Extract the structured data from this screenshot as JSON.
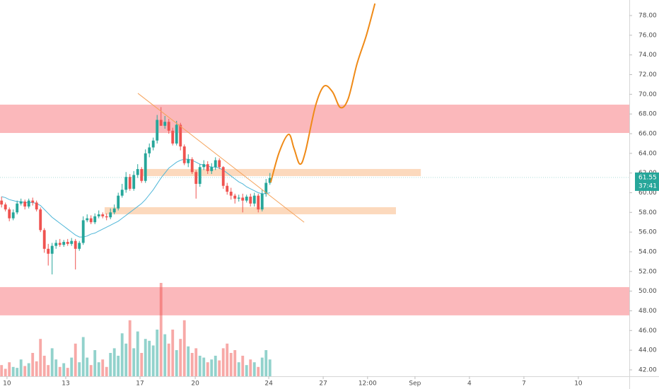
{
  "chart_data": {
    "type": "candlestick",
    "x": [
      0,
      1,
      2,
      3,
      4,
      5,
      6,
      7,
      8,
      9,
      10,
      11,
      12,
      13,
      14,
      15,
      16,
      17,
      18,
      19,
      20,
      21,
      22,
      23,
      24,
      25,
      26,
      27,
      28,
      29,
      30,
      31,
      32,
      33,
      34,
      35,
      36,
      37,
      38,
      39,
      40,
      41,
      42,
      43,
      44,
      45,
      46,
      47,
      48,
      49,
      50,
      51,
      52,
      53,
      54,
      55,
      56,
      57,
      58,
      59,
      60,
      61,
      62,
      63,
      64,
      65,
      66,
      67,
      68,
      69
    ],
    "open": [
      59.2,
      58.8,
      58.3,
      57.4,
      58.0,
      58.9,
      59.1,
      58.6,
      59.2,
      59.0,
      58.3,
      56.2,
      54.3,
      53.8,
      54.6,
      54.9,
      54.7,
      55.0,
      54.8,
      55.1,
      54.3,
      54.9,
      57.2,
      57.4,
      57.0,
      57.6,
      57.8,
      57.6,
      57.5,
      58.0,
      58.4,
      59.7,
      60.3,
      61.6,
      60.4,
      61.8,
      62.4,
      61.2,
      64.0,
      64.6,
      65.3,
      67.4,
      66.8,
      67.2,
      66.3,
      65.0,
      66.9,
      64.7,
      63.0,
      63.4,
      62.1,
      60.9,
      62.6,
      62.9,
      62.2,
      62.6,
      63.3,
      62.6,
      60.7,
      60.1,
      59.7,
      59.4,
      59.5,
      59.2,
      59.6,
      58.9,
      59.7,
      58.3,
      59.9,
      61.0
    ],
    "high": [
      59.6,
      59.0,
      58.5,
      58.3,
      59.2,
      59.4,
      59.3,
      59.4,
      59.5,
      59.2,
      58.5,
      56.4,
      54.8,
      54.9,
      55.2,
      55.3,
      55.2,
      55.3,
      55.4,
      55.3,
      55.1,
      57.6,
      57.8,
      57.7,
      57.9,
      58.2,
      58.0,
      57.9,
      58.4,
      58.8,
      60.0,
      60.9,
      62.1,
      61.9,
      62.2,
      62.9,
      62.6,
      64.4,
      65.0,
      65.6,
      67.9,
      68.7,
      67.8,
      67.5,
      66.6,
      67.3,
      67.1,
      64.9,
      63.9,
      63.6,
      62.3,
      62.9,
      63.3,
      63.2,
      63.0,
      63.6,
      63.5,
      62.7,
      61.0,
      60.5,
      59.9,
      59.8,
      59.9,
      59.8,
      59.9,
      60.0,
      59.9,
      60.3,
      61.4,
      62.0
    ],
    "low": [
      58.5,
      58.1,
      57.1,
      57.2,
      57.8,
      58.7,
      58.3,
      58.4,
      58.7,
      58.1,
      56.0,
      53.9,
      52.6,
      51.7,
      54.3,
      54.5,
      54.5,
      54.6,
      54.6,
      52.2,
      54.1,
      54.7,
      57.0,
      56.8,
      56.8,
      57.4,
      57.4,
      57.2,
      57.3,
      57.8,
      58.2,
      59.5,
      60.0,
      60.2,
      60.2,
      61.5,
      61.0,
      61.0,
      63.6,
      64.3,
      65.0,
      66.8,
      66.5,
      66.0,
      64.8,
      64.8,
      64.3,
      62.8,
      62.6,
      61.9,
      59.4,
      60.6,
      62.3,
      61.9,
      61.9,
      62.3,
      62.4,
      60.4,
      59.8,
      59.3,
      58.9,
      59.1,
      58.0,
      59.0,
      58.6,
      58.6,
      58.0,
      58.1,
      59.6,
      60.8
    ],
    "close": [
      58.8,
      58.3,
      57.4,
      58.0,
      58.9,
      59.1,
      58.6,
      59.2,
      59.0,
      58.3,
      56.2,
      54.3,
      53.8,
      54.6,
      54.9,
      54.7,
      55.0,
      54.8,
      55.1,
      54.3,
      54.9,
      57.2,
      57.4,
      57.0,
      57.6,
      57.8,
      57.6,
      57.5,
      58.0,
      58.4,
      59.7,
      60.3,
      61.6,
      60.4,
      61.8,
      62.4,
      61.2,
      64.0,
      64.6,
      65.3,
      67.4,
      66.8,
      67.2,
      66.3,
      65.0,
      66.9,
      64.7,
      63.0,
      63.4,
      62.1,
      60.9,
      62.6,
      62.9,
      62.2,
      62.6,
      63.3,
      62.6,
      60.7,
      60.1,
      59.7,
      59.4,
      59.5,
      59.2,
      59.6,
      58.9,
      59.7,
      58.3,
      59.9,
      61.0,
      61.5
    ],
    "volume": [
      12,
      8,
      15,
      10,
      9,
      18,
      11,
      14,
      25,
      16,
      40,
      22,
      12,
      30,
      18,
      10,
      14,
      9,
      20,
      35,
      15,
      42,
      20,
      12,
      28,
      15,
      18,
      10,
      25,
      30,
      22,
      46,
      35,
      60,
      30,
      48,
      25,
      40,
      38,
      33,
      50,
      100,
      45,
      35,
      50,
      28,
      40,
      60,
      32,
      25,
      30,
      22,
      20,
      15,
      18,
      22,
      17,
      30,
      35,
      25,
      28,
      15,
      22,
      12,
      18,
      15,
      10,
      20,
      28,
      18
    ],
    "moving_average": [
      59.6,
      59.5,
      59.3,
      59.2,
      59.1,
      59.1,
      59.0,
      59.0,
      59.0,
      58.9,
      58.7,
      58.3,
      57.9,
      57.5,
      57.2,
      56.9,
      56.6,
      56.3,
      56.0,
      55.7,
      55.5,
      55.5,
      55.6,
      55.8,
      55.9,
      56.1,
      56.3,
      56.5,
      56.7,
      56.9,
      57.1,
      57.4,
      57.7,
      58.0,
      58.3,
      58.6,
      58.9,
      59.3,
      59.8,
      60.3,
      60.9,
      61.5,
      62.0,
      62.5,
      62.8,
      63.1,
      63.3,
      63.4,
      63.4,
      63.3,
      63.1,
      62.9,
      62.8,
      62.7,
      62.6,
      62.6,
      62.5,
      62.3,
      62.0,
      61.7,
      61.4,
      61.1,
      60.9,
      60.6,
      60.4,
      60.2,
      60.0,
      59.9,
      59.9,
      60.0
    ],
    "up_color": "#26a69a",
    "down_color": "#ef5350",
    "ma_color": "#4fb6d8",
    "zones": [
      {
        "from": 66.07,
        "to": 68.95,
        "color": "#fbb8bb"
      },
      {
        "from": 47.54,
        "to": 50.41,
        "color": "#fbb8bb"
      },
      {
        "from": 61.69,
        "to": 62.41,
        "x": [
          35.96,
          107.8
        ],
        "color": "#fcd9bd"
      },
      {
        "from": 57.81,
        "to": 58.53,
        "x": [
          26.5,
          101.4
        ],
        "color": "#fcd9bd"
      }
    ],
    "trendline": {
      "x": [
        35.05,
        77.8
      ],
      "values": [
        70.1,
        57.0
      ],
      "color": "#f5a35c"
    },
    "projection": {
      "x": [
        69.2,
        71.4,
        73.8,
        75.2,
        76.7,
        78.1,
        80.7,
        82.9,
        85.1,
        87.1,
        89.1,
        91.4,
        93.8,
        96.0
      ],
      "values": [
        61.05,
        64.13,
        65.93,
        64.49,
        62.91,
        64.13,
        68.8,
        70.82,
        70.24,
        68.66,
        69.52,
        73.11,
        75.99,
        79.22
      ],
      "color": "#ef8a17"
    },
    "xlim": [
      -0.4,
      161.4
    ],
    "ylim": [
      41.35,
      79.58
    ],
    "xticks": [
      {
        "value": 1.4,
        "label": "10"
      },
      {
        "value": 16.5,
        "label": "13"
      },
      {
        "value": 35.6,
        "label": "17"
      },
      {
        "value": 49.8,
        "label": "20"
      },
      {
        "value": 68.7,
        "label": "24"
      },
      {
        "value": 82.7,
        "label": "27"
      },
      {
        "value": 94.1,
        "label": "12:00"
      },
      {
        "value": 106.3,
        "label": "Sep"
      },
      {
        "value": 120.3,
        "label": "4"
      },
      {
        "value": 134.3,
        "label": "7"
      },
      {
        "value": 148.3,
        "label": "10"
      }
    ],
    "yticks": [
      {
        "value": 42,
        "label": "42.00"
      },
      {
        "value": 44,
        "label": "44.00"
      },
      {
        "value": 46,
        "label": "46.00"
      },
      {
        "value": 48,
        "label": "48.00"
      },
      {
        "value": 50,
        "label": "50.00"
      },
      {
        "value": 52,
        "label": "52.00"
      },
      {
        "value": 54,
        "label": "54.00"
      },
      {
        "value": 56,
        "label": "56.00"
      },
      {
        "value": 58,
        "label": "58.00"
      },
      {
        "value": 60,
        "label": "60.00"
      },
      {
        "value": 62,
        "label": "62.00"
      },
      {
        "value": 64,
        "label": "64.00"
      },
      {
        "value": 66,
        "label": "66.00"
      },
      {
        "value": 68,
        "label": "68.00"
      },
      {
        "value": 70,
        "label": "70.00"
      },
      {
        "value": 72,
        "label": "72.00"
      },
      {
        "value": 74,
        "label": "74.00"
      },
      {
        "value": 76,
        "label": "76.00"
      },
      {
        "value": 78,
        "label": "78.00"
      }
    ],
    "last_price": 61.55,
    "countdown": "37:41",
    "badge_color": "#26a69a",
    "grid": false
  }
}
